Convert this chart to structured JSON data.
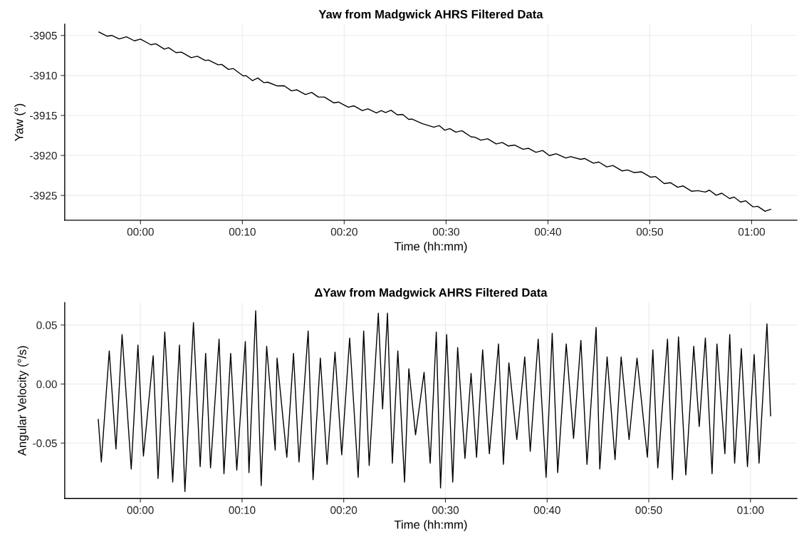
{
  "chart_data": [
    {
      "type": "line",
      "title": "Yaw from Madgwick AHRS Filtered Data",
      "xlabel": "Time (hh:mm)",
      "ylabel": "Yaw (°)",
      "xlim": [
        -0.124,
        1.074
      ],
      "ylim": [
        -3928.1,
        -3903.6
      ],
      "xticks": [
        {
          "value": 0,
          "label": "00:00"
        },
        {
          "value": 0.1667,
          "label": "00:10"
        },
        {
          "value": 0.3333,
          "label": "00:20"
        },
        {
          "value": 0.5,
          "label": "00:30"
        },
        {
          "value": 0.6667,
          "label": "00:40"
        },
        {
          "value": 0.8333,
          "label": "00:50"
        },
        {
          "value": 1,
          "label": "01:00"
        }
      ],
      "yticks": [
        -3905,
        -3910,
        -3915,
        -3920,
        -3925
      ],
      "grid": true,
      "marker": "none",
      "line_style": "solid",
      "series": [
        {
          "color": "#000000",
          "x": [
            -0.068,
            -0.055,
            -0.047,
            -0.035,
            -0.023,
            -0.01,
            0,
            0.017,
            0.025,
            0.039,
            0.046,
            0.058,
            0.067,
            0.083,
            0.093,
            0.106,
            0.111,
            0.127,
            0.133,
            0.144,
            0.152,
            0.168,
            0.173,
            0.183,
            0.192,
            0.202,
            0.208,
            0.224,
            0.235,
            0.247,
            0.256,
            0.27,
            0.28,
            0.291,
            0.301,
            0.316,
            0.324,
            0.34,
            0.349,
            0.363,
            0.372,
            0.386,
            0.394,
            0.401,
            0.41,
            0.42,
            0.429,
            0.439,
            0.444,
            0.461,
            0.48,
            0.489,
            0.498,
            0.506,
            0.516,
            0.526,
            0.541,
            0.547,
            0.557,
            0.568,
            0.582,
            0.592,
            0.602,
            0.612,
            0.626,
            0.635,
            0.647,
            0.658,
            0.669,
            0.68,
            0.696,
            0.704,
            0.72,
            0.727,
            0.741,
            0.75,
            0.763,
            0.773,
            0.788,
            0.797,
            0.808,
            0.82,
            0.835,
            0.843,
            0.857,
            0.867,
            0.879,
            0.888,
            0.902,
            0.912,
            0.924,
            0.931,
            0.942,
            0.951,
            0.964,
            0.971,
            0.982,
            0.99,
            1.002,
            1.01,
            1.022,
            1.031
          ],
          "values": [
            -3904.57,
            -3905.09,
            -3905.0,
            -3905.43,
            -3905.17,
            -3905.67,
            -3905.46,
            -3906.16,
            -3906.04,
            -3906.71,
            -3906.53,
            -3907.14,
            -3907.08,
            -3907.78,
            -3907.6,
            -3908.13,
            -3908.07,
            -3908.67,
            -3908.62,
            -3909.25,
            -3909.14,
            -3910.06,
            -3910.03,
            -3910.64,
            -3910.32,
            -3910.9,
            -3910.84,
            -3911.31,
            -3911.28,
            -3911.92,
            -3911.8,
            -3912.38,
            -3912.12,
            -3912.7,
            -3912.7,
            -3913.42,
            -3913.33,
            -3913.97,
            -3913.8,
            -3914.4,
            -3914.17,
            -3914.69,
            -3914.4,
            -3914.64,
            -3914.35,
            -3914.92,
            -3914.87,
            -3915.5,
            -3915.45,
            -3916.02,
            -3916.47,
            -3916.27,
            -3916.85,
            -3916.65,
            -3917.09,
            -3916.91,
            -3917.68,
            -3917.71,
            -3918.09,
            -3917.91,
            -3918.56,
            -3918.38,
            -3918.82,
            -3918.7,
            -3919.23,
            -3919.11,
            -3919.61,
            -3919.38,
            -3920.02,
            -3919.79,
            -3920.32,
            -3920.14,
            -3920.49,
            -3920.38,
            -3920.96,
            -3920.82,
            -3921.43,
            -3921.26,
            -3921.93,
            -3921.81,
            -3922.14,
            -3922.05,
            -3922.72,
            -3922.64,
            -3923.52,
            -3923.4,
            -3923.98,
            -3923.81,
            -3924.48,
            -3924.4,
            -3924.57,
            -3924.34,
            -3924.98,
            -3924.72,
            -3925.39,
            -3925.19,
            -3925.83,
            -3925.66,
            -3926.42,
            -3926.36,
            -3926.98,
            -3926.74
          ]
        }
      ]
    },
    {
      "type": "line",
      "title": "ΔYaw from Madgwick AHRS Filtered Data",
      "xlabel": "Time (hh:mm)",
      "ylabel": "Angular Velocity (°/s)",
      "xlim": [
        -0.124,
        1.076
      ],
      "ylim": [
        -0.097,
        0.069
      ],
      "xticks": [
        {
          "value": 0,
          "label": "00:00"
        },
        {
          "value": 0.1667,
          "label": "00:10"
        },
        {
          "value": 0.3333,
          "label": "00:20"
        },
        {
          "value": 0.5,
          "label": "00:30"
        },
        {
          "value": 0.6667,
          "label": "00:40"
        },
        {
          "value": 0.8333,
          "label": "00:50"
        },
        {
          "value": 1,
          "label": "01:00"
        }
      ],
      "yticks": [
        0.05,
        {
          "value": 0,
          "label": "0.00"
        },
        -0.05
      ],
      "grid": true,
      "marker": "none",
      "line_style": "solid",
      "series": [
        {
          "color": "#000000",
          "x": [
            -0.069,
            -0.064,
            -0.051,
            -0.04,
            -0.03,
            -0.015,
            -0.004,
            0.005,
            0.021,
            0.029,
            0.04,
            0.053,
            0.064,
            0.073,
            0.087,
            0.098,
            0.107,
            0.115,
            0.129,
            0.137,
            0.148,
            0.158,
            0.172,
            0.178,
            0.189,
            0.198,
            0.207,
            0.221,
            0.224,
            0.24,
            0.251,
            0.26,
            0.275,
            0.283,
            0.295,
            0.306,
            0.319,
            0.33,
            0.343,
            0.357,
            0.366,
            0.375,
            0.39,
            0.397,
            0.405,
            0.413,
            0.422,
            0.433,
            0.44,
            0.451,
            0.465,
            0.475,
            0.485,
            0.492,
            0.502,
            0.512,
            0.52,
            0.532,
            0.542,
            0.551,
            0.561,
            0.572,
            0.587,
            0.595,
            0.604,
            0.617,
            0.63,
            0.639,
            0.652,
            0.665,
            0.675,
            0.684,
            0.698,
            0.71,
            0.722,
            0.732,
            0.747,
            0.753,
            0.765,
            0.778,
            0.788,
            0.801,
            0.814,
            0.831,
            0.84,
            0.848,
            0.864,
            0.872,
            0.882,
            0.894,
            0.907,
            0.916,
            0.926,
            0.937,
            0.945,
            0.958,
            0.966,
            0.974,
            0.985,
            0.995,
            1.006,
            1.014,
            1.027,
            1.033
          ],
          "values": [
            -0.03,
            -0.066,
            0.028,
            -0.055,
            0.042,
            -0.072,
            0.033,
            -0.061,
            0.024,
            -0.08,
            0.044,
            -0.083,
            0.033,
            -0.091,
            0.052,
            -0.07,
            0.026,
            -0.071,
            0.038,
            -0.076,
            0.026,
            -0.073,
            0.036,
            -0.075,
            0.062,
            -0.086,
            0.032,
            -0.056,
            0.022,
            -0.062,
            0.026,
            -0.066,
            0.045,
            -0.081,
            0.022,
            -0.068,
            0.027,
            -0.06,
            0.039,
            -0.079,
            0.045,
            -0.069,
            0.06,
            -0.021,
            0.06,
            -0.067,
            0.028,
            -0.083,
            0.013,
            -0.043,
            0.01,
            -0.067,
            0.044,
            -0.088,
            0.042,
            -0.083,
            0.031,
            -0.063,
            0.009,
            -0.062,
            0.029,
            -0.059,
            0.034,
            -0.068,
            0.018,
            -0.047,
            0.023,
            -0.057,
            0.038,
            -0.079,
            0.043,
            -0.075,
            0.034,
            -0.046,
            0.037,
            -0.068,
            0.048,
            -0.072,
            0.023,
            -0.064,
            0.023,
            -0.047,
            0.022,
            -0.062,
            0.029,
            -0.071,
            0.038,
            -0.081,
            0.04,
            -0.077,
            0.032,
            -0.036,
            0.039,
            -0.076,
            0.034,
            -0.059,
            0.042,
            -0.067,
            0.03,
            -0.07,
            0.025,
            -0.067,
            0.051,
            -0.027
          ]
        }
      ]
    }
  ]
}
